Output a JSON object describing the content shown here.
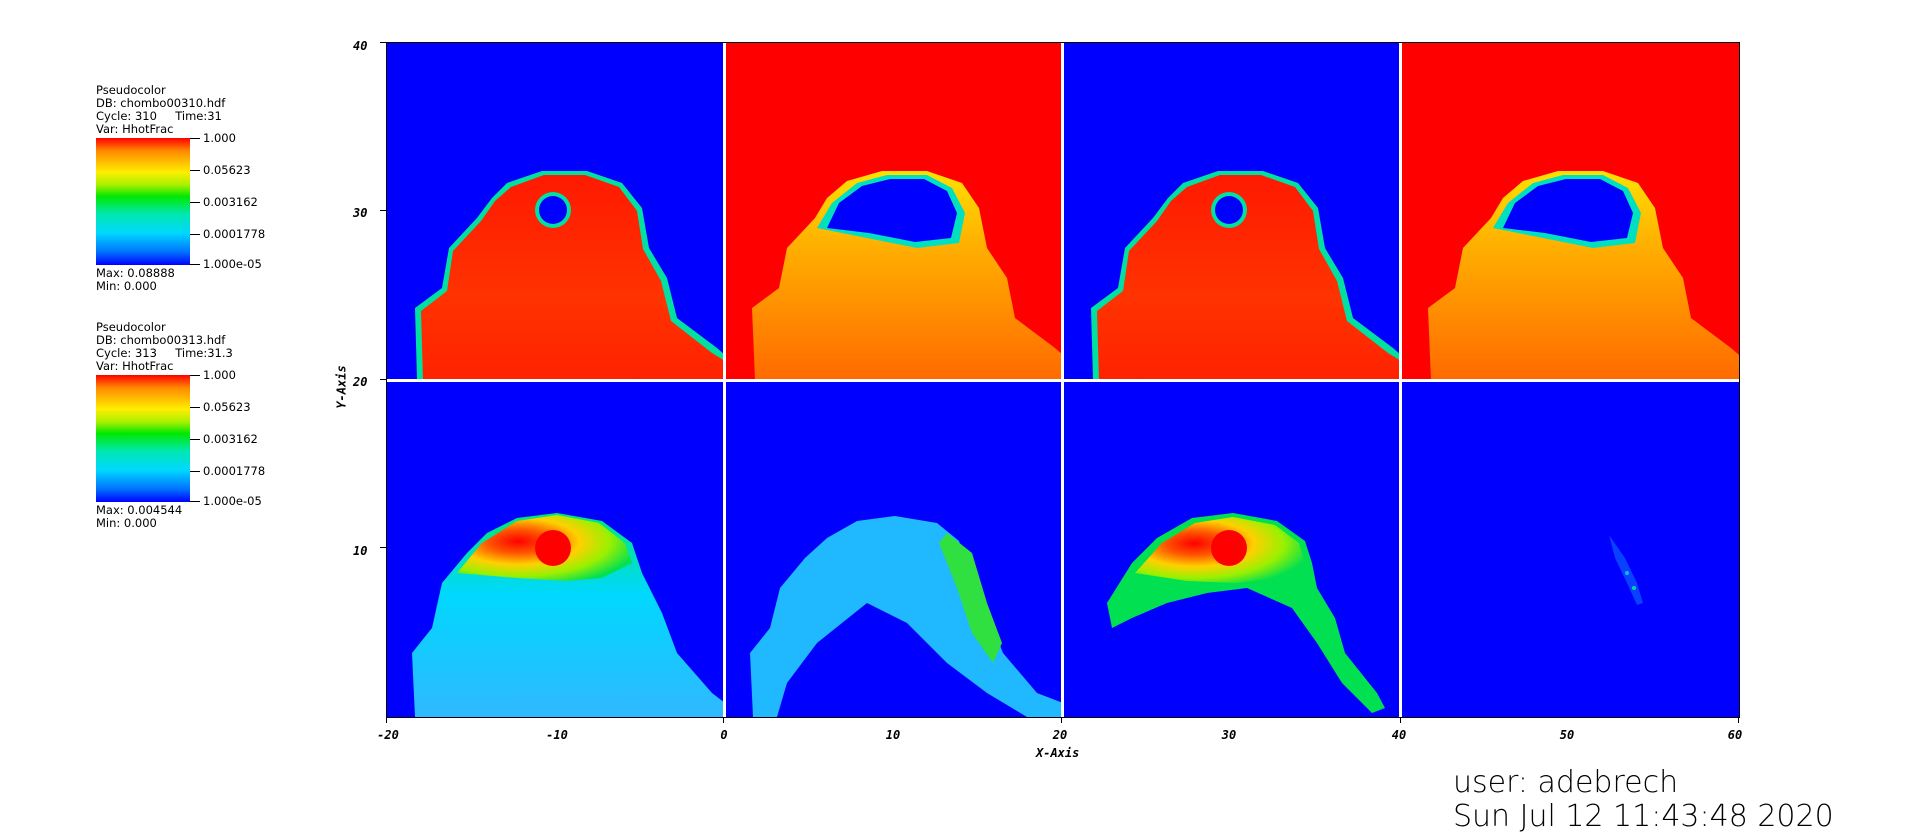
{
  "legends": [
    {
      "plot_type": "Pseudocolor",
      "db": "DB: chombo00310.hdf",
      "cycle": "Cycle: 310",
      "time": "Time:31",
      "var": "Var: HhotFrac",
      "ticks": [
        "1.000",
        "0.05623",
        "0.003162",
        "0.0001778",
        "1.000e-05"
      ],
      "max": "Max: 0.08888",
      "min": "Min: 0.000"
    },
    {
      "plot_type": "Pseudocolor",
      "db": "DB: chombo00313.hdf",
      "cycle": "Cycle: 313",
      "time": "Time:31.3",
      "var": "Var: HhotFrac",
      "ticks": [
        "1.000",
        "0.05623",
        "0.003162",
        "0.0001778",
        "1.000e-05"
      ],
      "max": "Max: 0.004544",
      "min": "Min: 0.000"
    }
  ],
  "plot": {
    "x_axis_label": "X-Axis",
    "y_axis_label": "Y-Axis",
    "x_ticks": [
      "-20",
      "-10",
      "0",
      "10",
      "20",
      "30",
      "40",
      "50",
      "60"
    ],
    "y_ticks": [
      "40",
      "30",
      "20",
      "10"
    ],
    "x_range": [
      -20,
      60
    ],
    "y_range": [
      0,
      40
    ],
    "colormap": [
      "#0000ff",
      "#00d8ff",
      "#00e800",
      "#ffee00",
      "#ff0000"
    ]
  },
  "footer": {
    "user": "user: adebrech",
    "datetime": "Sun Jul 12 11:43:48 2020"
  }
}
